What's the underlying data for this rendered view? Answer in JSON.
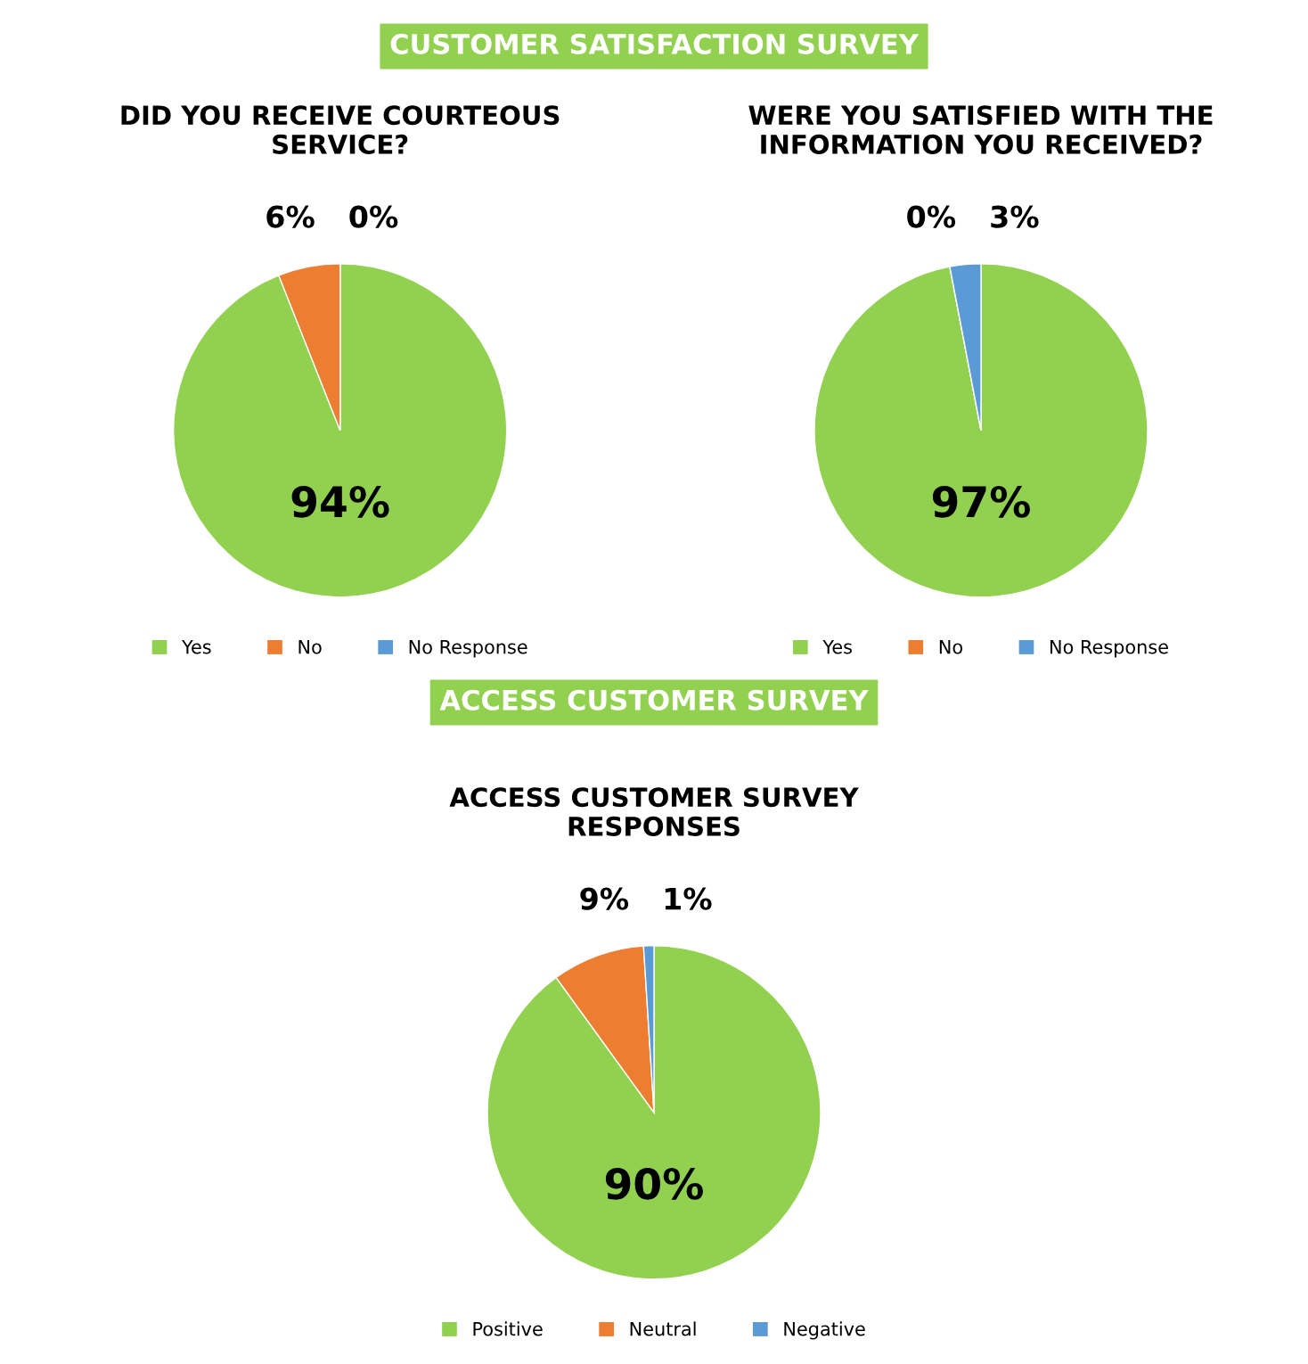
{
  "chart_data": [
    {
      "type": "pie",
      "title": "DID YOU RECEIVE COURTEOUS\nSERVICE?",
      "annotations": [
        "CUSTOMER SATISFACTION SURVEY"
      ],
      "categories": [
        "Yes",
        "No",
        "No Response"
      ],
      "values": [
        94,
        6,
        0
      ],
      "value_labels": [
        "94%",
        "6%",
        "0%"
      ],
      "colors": [
        "#92d050",
        "#ed7d31",
        "#5b9bd5"
      ],
      "legend": "bottom"
    },
    {
      "type": "pie",
      "title": "WERE YOU SATISFIED WITH THE\nINFORMATION YOU RECEIVED?",
      "categories": [
        "Yes",
        "No",
        "No Response"
      ],
      "values": [
        97,
        0,
        3
      ],
      "value_labels": [
        "97%",
        "0%",
        "3%"
      ],
      "colors": [
        "#92d050",
        "#ed7d31",
        "#5b9bd5"
      ],
      "legend": "bottom"
    },
    {
      "type": "pie",
      "title": "ACCESS CUSTOMER SURVEY\nRESPONSES",
      "annotations": [
        "ACCESS CUSTOMER SURVEY"
      ],
      "categories": [
        "Positive",
        "Neutral",
        "Negative"
      ],
      "values": [
        90,
        9,
        1
      ],
      "value_labels": [
        "90%",
        "9%",
        "1%"
      ],
      "colors": [
        "#92d050",
        "#ed7d31",
        "#5b9bd5"
      ],
      "legend": "bottom"
    }
  ]
}
